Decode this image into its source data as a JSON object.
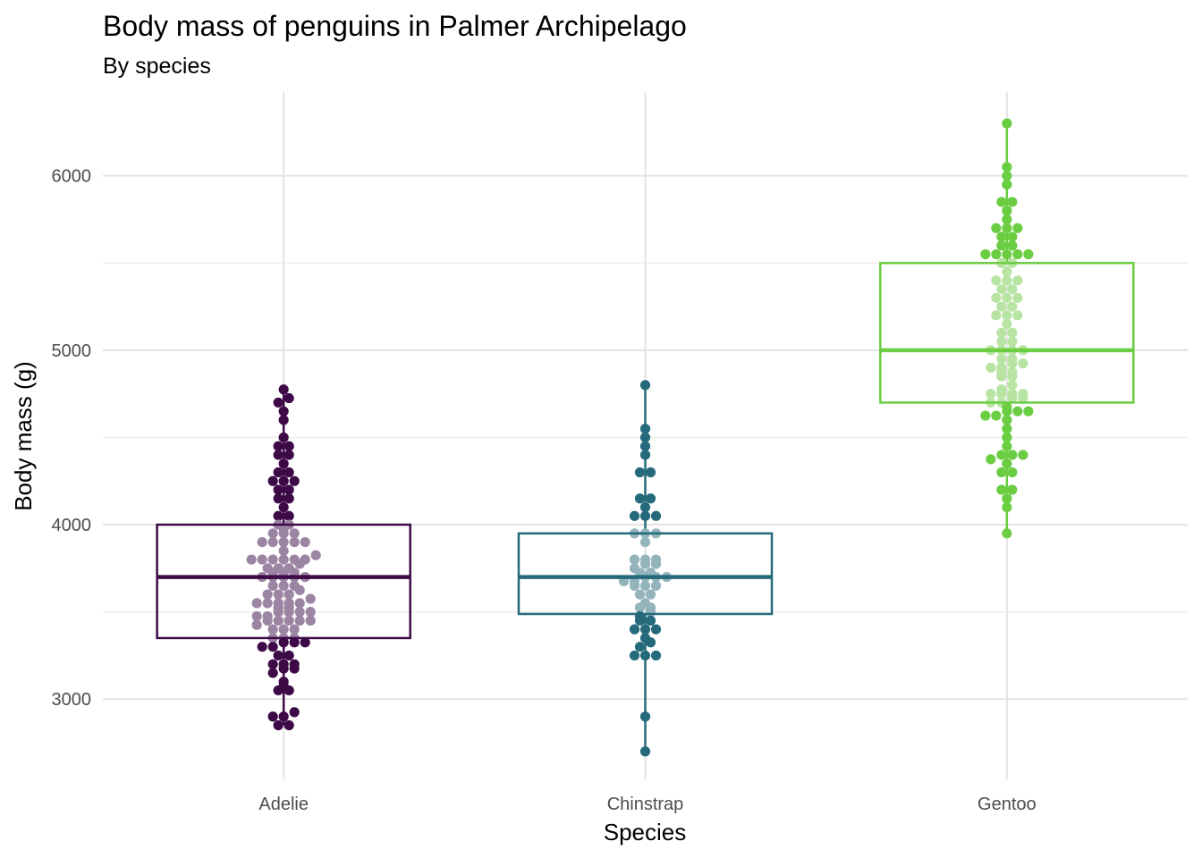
{
  "chart_data": {
    "type": "boxplot",
    "title": "Body mass of penguins in Palmer Archipelago",
    "subtitle": "By species",
    "xlabel": "Species",
    "ylabel": "Body mass (g)",
    "ylim": [
      2540,
      6480
    ],
    "yticks": [
      3000,
      4000,
      5000,
      6000
    ],
    "grid": true,
    "legend": "none",
    "categories": [
      "Adelie",
      "Chinstrap",
      "Gentoo"
    ],
    "series": [
      {
        "category": "Adelie",
        "color": "#3d0a47",
        "light_color": "#9c84a3",
        "box": {
          "whisker_low": 2850,
          "q1": 3350,
          "median": 3700,
          "q3": 4000,
          "whisker_high": 4775
        },
        "points": [
          2850,
          2850,
          2900,
          2900,
          2925,
          3050,
          3050,
          3075,
          3100,
          3150,
          3175,
          3175,
          3200,
          3200,
          3200,
          3250,
          3250,
          3300,
          3300,
          3325,
          3325,
          3325,
          3350,
          3350,
          3350,
          3400,
          3400,
          3400,
          3425,
          3450,
          3450,
          3450,
          3450,
          3450,
          3475,
          3475,
          3500,
          3500,
          3500,
          3500,
          3525,
          3525,
          3550,
          3550,
          3550,
          3550,
          3550,
          3575,
          3600,
          3600,
          3600,
          3625,
          3650,
          3650,
          3650,
          3700,
          3700,
          3700,
          3700,
          3700,
          3725,
          3725,
          3725,
          3750,
          3750,
          3750,
          3775,
          3800,
          3800,
          3800,
          3800,
          3800,
          3800,
          3825,
          3850,
          3900,
          3900,
          3900,
          3900,
          3900,
          3950,
          3950,
          3950,
          3975,
          4000,
          4000,
          4050,
          4050,
          4100,
          4150,
          4150,
          4200,
          4200,
          4250,
          4250,
          4250,
          4300,
          4300,
          4350,
          4400,
          4400,
          4450,
          4450,
          4500,
          4600,
          4650,
          4700,
          4725,
          4775
        ]
      },
      {
        "category": "Chinstrap",
        "color": "#256a7a",
        "light_color": "#94b4bc",
        "box": {
          "whisker_low": 2700,
          "q1": 3488,
          "median": 3700,
          "q3": 3950,
          "whisker_high": 4800
        },
        "points": [
          2700,
          2900,
          3250,
          3250,
          3250,
          3300,
          3325,
          3350,
          3400,
          3400,
          3400,
          3450,
          3450,
          3475,
          3500,
          3525,
          3525,
          3550,
          3600,
          3600,
          3650,
          3650,
          3650,
          3675,
          3675,
          3700,
          3700,
          3700,
          3725,
          3725,
          3750,
          3775,
          3775,
          3800,
          3800,
          3800,
          3900,
          3950,
          3950,
          3950,
          4050,
          4050,
          4050,
          4100,
          4150,
          4150,
          4300,
          4300,
          4400,
          4450,
          4500,
          4550,
          4800
        ]
      },
      {
        "category": "Gentoo",
        "color": "#6acd42",
        "light_color": "#b8e4a3",
        "box": {
          "whisker_low": 3950,
          "q1": 4700,
          "median": 5000,
          "q3": 5500,
          "whisker_high": 6300
        },
        "points": [
          3950,
          4100,
          4150,
          4200,
          4200,
          4300,
          4300,
          4350,
          4375,
          4400,
          4400,
          4400,
          4450,
          4500,
          4550,
          4600,
          4625,
          4625,
          4650,
          4650,
          4650,
          4675,
          4700,
          4700,
          4725,
          4725,
          4750,
          4750,
          4750,
          4750,
          4775,
          4800,
          4850,
          4850,
          4875,
          4875,
          4900,
          4900,
          4925,
          4925,
          4950,
          4950,
          5000,
          5000,
          5000,
          5000,
          5050,
          5050,
          5100,
          5100,
          5150,
          5200,
          5200,
          5200,
          5250,
          5250,
          5300,
          5300,
          5300,
          5350,
          5350,
          5400,
          5400,
          5400,
          5450,
          5500,
          5500,
          5550,
          5550,
          5550,
          5550,
          5550,
          5600,
          5600,
          5650,
          5650,
          5700,
          5700,
          5700,
          5750,
          5800,
          5850,
          5850,
          5950,
          6000,
          6050,
          6300
        ]
      }
    ]
  }
}
